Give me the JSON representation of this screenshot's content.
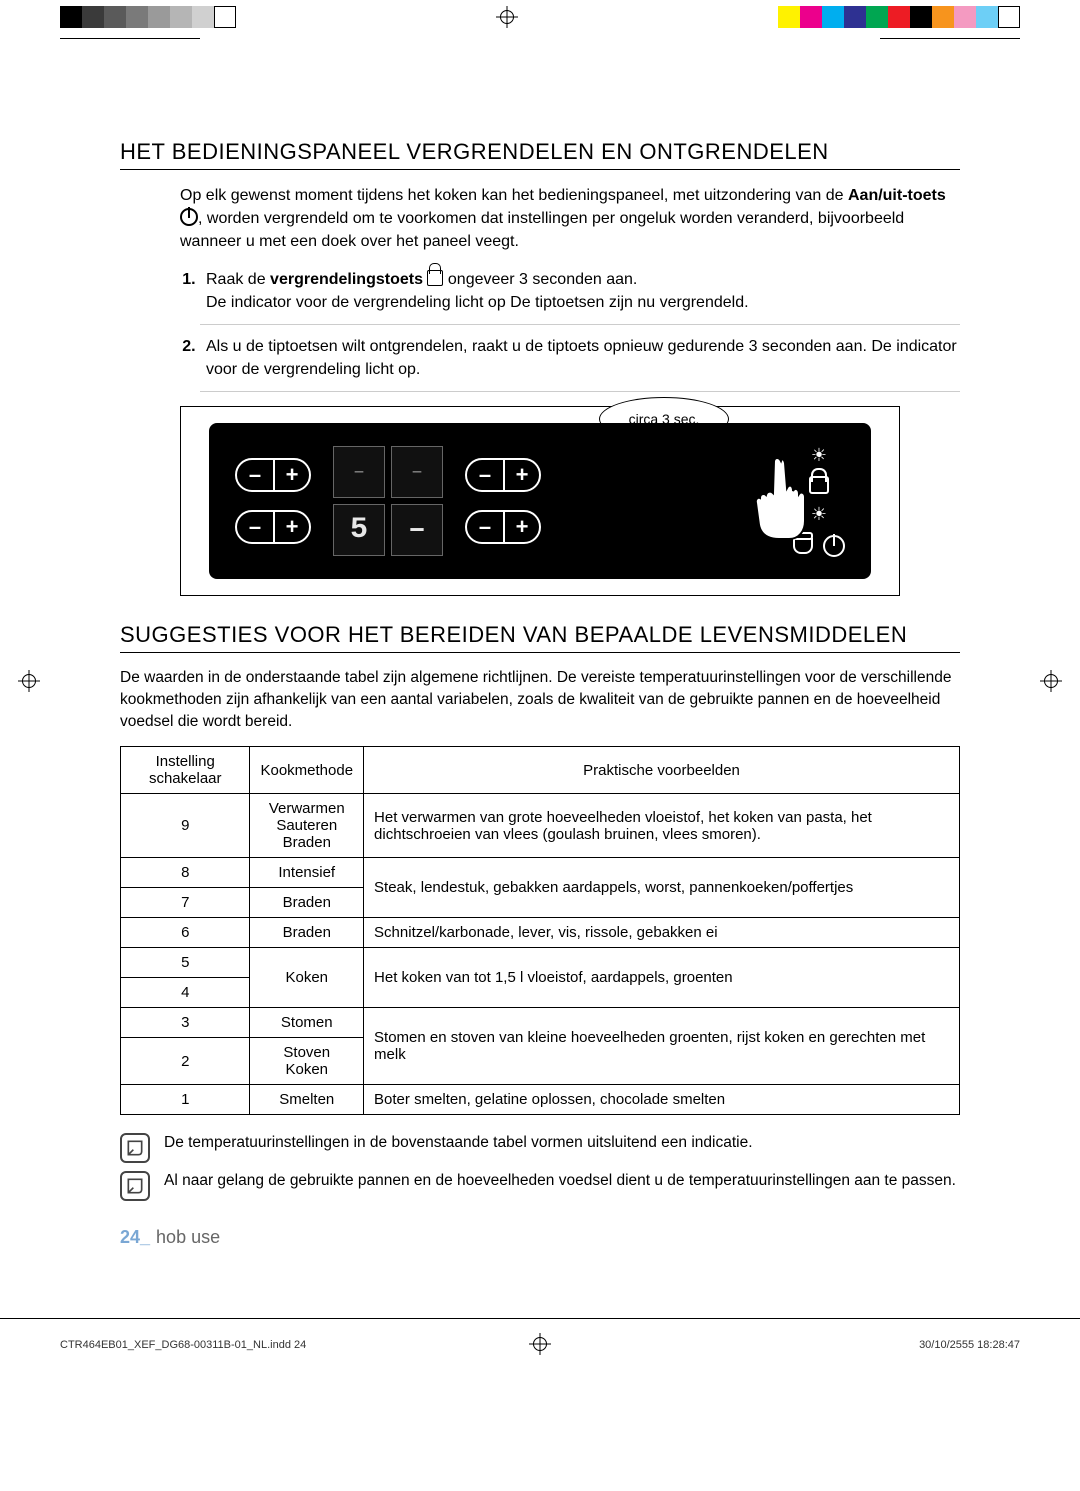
{
  "reg_top_left_colors": [
    "#000000",
    "#3a3a3a",
    "#5a5a5a",
    "#7a7a7a",
    "#9a9a9a",
    "#b5b5b5",
    "#d0d0d0",
    "#ffffff"
  ],
  "reg_top_right_colors": [
    "#fff200",
    "#ec008c",
    "#00aeef",
    "#2e3192",
    "#00a651",
    "#ed1c24",
    "#000000",
    "#f7941d",
    "#f49ac1",
    "#6dcff6",
    "#ffffff"
  ],
  "heading1": "HET BEDIENINGSPANEEL VERGRENDELEN EN ONTGRENDELEN",
  "intro_a": "Op elk gewenst moment tijdens het koken kan het bedieningspaneel, met uitzondering van de ",
  "intro_bold": "Aan/uit-toets",
  "intro_b": ", worden vergrendeld om te voorkomen dat instellingen per ongeluk worden veranderd, bijvoorbeeld wanneer u met een doek over het paneel veegt.",
  "step1_a": "Raak de ",
  "step1_bold": "vergrendelingstoets",
  "step1_b": " ongeveer 3 seconden aan.",
  "step1_c": "De indicator voor de vergrendeling licht op De tiptoetsen zijn nu vergrendeld.",
  "step2": "Als u de tiptoetsen wilt ontgrendelen, raakt u de tiptoets opnieuw gedurende 3 seconden aan. De indicator voor de vergrendeling licht op.",
  "bubble": "circa 3 sec.",
  "disp_vals": [
    "–",
    "–",
    "5",
    "–"
  ],
  "heading2": "SUGGESTIES VOOR HET BEREIDEN VAN BEPAALDE LEVENSMIDDELEN",
  "body2": "De waarden in de onderstaande tabel zijn algemene richtlijnen. De vereiste temperatuurinstellingen voor de verschillende kookmethoden zijn afhankelijk van een aantal variabelen, zoals de kwaliteit van de gebruikte pannen en de hoeveelheid voedsel die wordt bereid.",
  "table": {
    "headers": [
      "Instelling schakelaar",
      "Kookmethode",
      "Praktische voorbeelden"
    ],
    "rows": [
      {
        "setting": "9",
        "method": "Verwarmen\nSauteren\nBraden",
        "example": "Het verwarmen van grote hoeveelheden vloeistof, het koken van pasta, het dichtschroeien van vlees (goulash bruinen, vlees smoren)."
      },
      {
        "setting": "8",
        "method_row1": "Intensief",
        "method_row2": "Braden",
        "example": "Steak, lendestuk, gebakken aardappels, worst, pannenkoeken/poffertjes",
        "merge_next": true,
        "next_setting": "7"
      },
      {
        "setting": "6",
        "method": "Braden",
        "example": "Schnitzel/karbonade, lever, vis, rissole, gebakken ei"
      },
      {
        "setting": "5",
        "method": "Koken",
        "example": "Het koken van tot 1,5 l vloeistof, aardappels, groenten",
        "merge_next": true,
        "next_setting": "4"
      },
      {
        "setting": "3",
        "method_row1": "Stomen",
        "method_row2": "Stoven\nKoken",
        "example": "Stomen en stoven van kleine hoeveelheden groenten, rijst koken en gerechten met melk",
        "merge_next": true,
        "next_setting": "2"
      },
      {
        "setting": "1",
        "method": "Smelten",
        "example": "Boter smelten, gelatine oplossen, chocolade smelten"
      }
    ]
  },
  "note1": "De temperatuurinstellingen in de bovenstaande tabel vormen uitsluitend een indicatie.",
  "note2": "Al naar gelang de gebruikte pannen en de hoeveelheden voedsel dient u de temperatuurinstellingen aan te passen.",
  "page_num": "24_",
  "page_section": "hob use",
  "print_file": "CTR464EB01_XEF_DG68-00311B-01_NL.indd   24",
  "print_date": "30/10/2555   18:28:47"
}
